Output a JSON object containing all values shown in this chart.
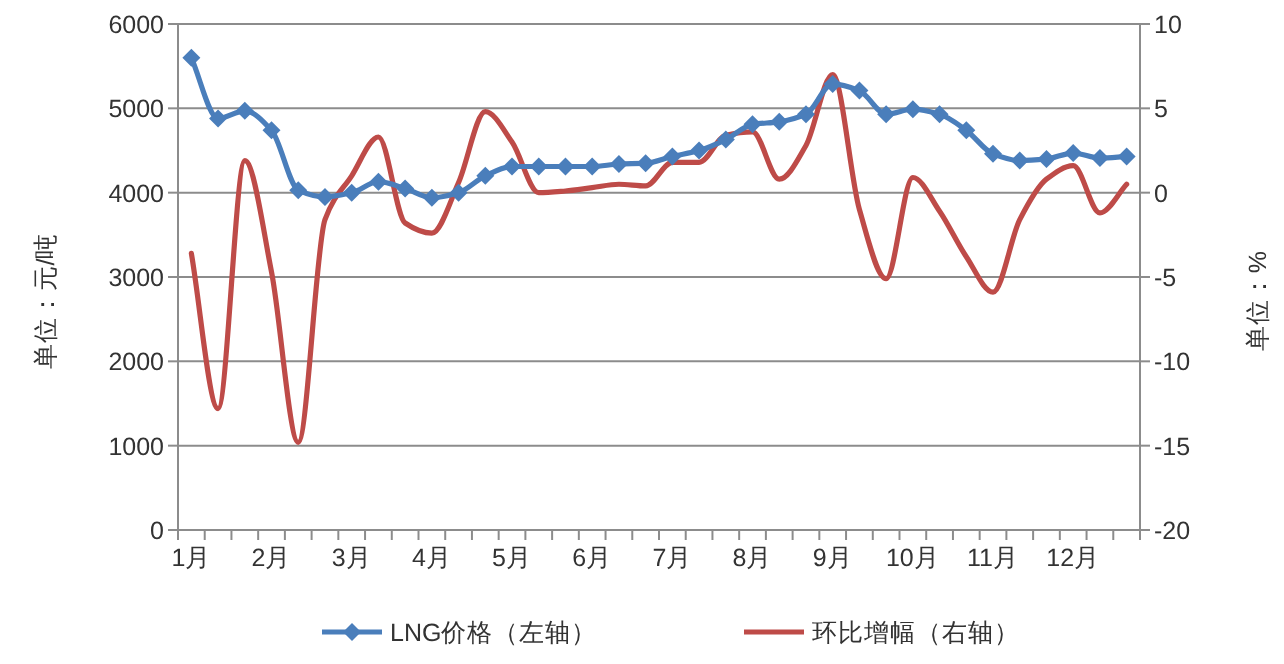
{
  "chart_data": {
    "type": "line",
    "categories": [
      "1月",
      null,
      null,
      "2月",
      null,
      null,
      "3月",
      null,
      null,
      "4月",
      null,
      null,
      "5月",
      null,
      null,
      "6月",
      null,
      null,
      "7月",
      null,
      null,
      "8月",
      null,
      null,
      "9月",
      null,
      null,
      "10月",
      null,
      null,
      "11月",
      null,
      null,
      "12月",
      null,
      null
    ],
    "series": [
      {
        "name": "LNG价格（左轴）",
        "color": "#4a7ebb",
        "marker": "diamond",
        "values": [
          5600,
          4880,
          4970,
          4740,
          4030,
          3950,
          4000,
          4130,
          4050,
          3940,
          4000,
          4200,
          4310,
          4310,
          4310,
          4310,
          4340,
          4350,
          4430,
          4500,
          4630,
          4810,
          4840,
          4930,
          5290,
          5210,
          4930,
          4990,
          4930,
          4740,
          4460,
          4380,
          4400,
          4470,
          4410,
          4430
        ]
      },
      {
        "name": "环比增幅（右轴）",
        "color": "#be4b48",
        "marker": "none",
        "axis": "y2",
        "values": [
          -3.6,
          -12.8,
          1.9,
          -4.7,
          -14.8,
          -1.6,
          1.0,
          3.3,
          -1.8,
          -2.4,
          0.6,
          4.8,
          3.0,
          0.0,
          0.1,
          0.3,
          0.5,
          0.4,
          1.8,
          1.8,
          3.4,
          3.6,
          0.8,
          2.8,
          7.0,
          -1.0,
          -5.1,
          0.9,
          -1.1,
          -3.8,
          -5.9,
          -1.6,
          0.8,
          1.6,
          -1.2,
          0.5
        ]
      }
    ],
    "ylabel": "单位：元/吨",
    "y2label": "单位：%",
    "ylim": [
      0,
      6000
    ],
    "yticks": [
      0,
      1000,
      2000,
      3000,
      4000,
      5000,
      6000
    ],
    "y2lim": [
      -20,
      10
    ],
    "y2ticks": [
      -20,
      -15,
      -10,
      -5,
      0,
      5,
      10
    ],
    "grid": "y",
    "legend": "bottom"
  }
}
